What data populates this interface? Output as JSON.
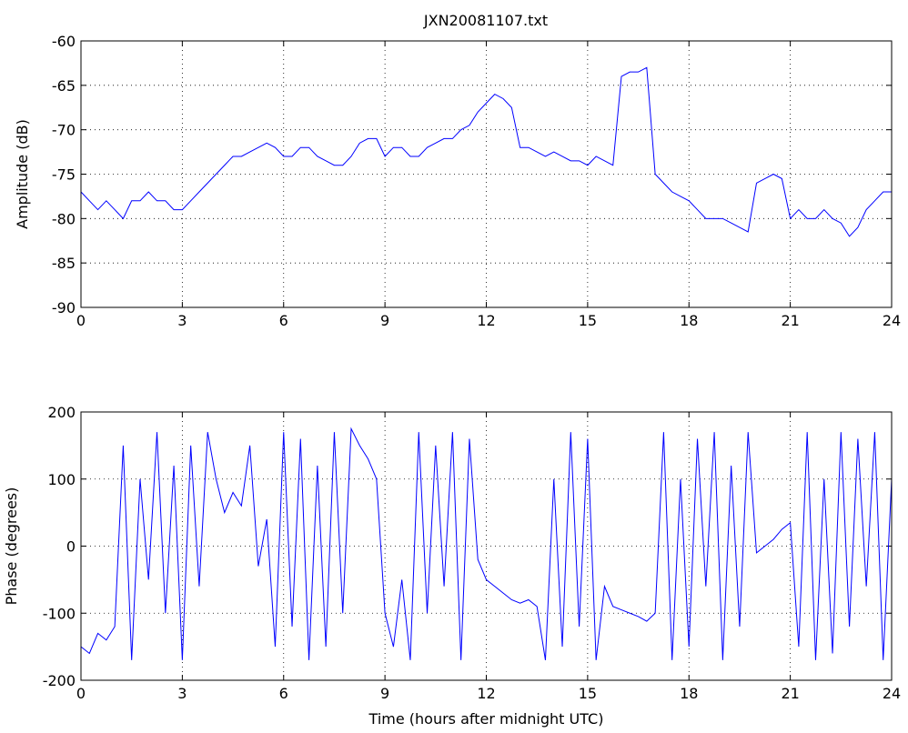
{
  "chart_data": [
    {
      "type": "line",
      "title": "JXN20081107.txt",
      "y_label": "Amplitude (dB)",
      "xlim": [
        0,
        24
      ],
      "xticks": [
        0,
        3,
        6,
        9,
        12,
        15,
        18,
        21,
        24
      ],
      "ylim": [
        -90,
        -60
      ],
      "yticks": [
        -90,
        -85,
        -80,
        -75,
        -70,
        -65,
        -60
      ],
      "grid": true,
      "x": [
        0,
        0.25,
        0.5,
        0.75,
        1,
        1.25,
        1.5,
        1.75,
        2,
        2.25,
        2.5,
        2.75,
        3,
        3.25,
        3.5,
        3.75,
        4,
        4.25,
        4.5,
        4.75,
        5,
        5.25,
        5.5,
        5.75,
        6,
        6.25,
        6.5,
        6.75,
        7,
        7.25,
        7.5,
        7.75,
        8,
        8.25,
        8.5,
        8.75,
        9,
        9.25,
        9.5,
        9.75,
        10,
        10.25,
        10.5,
        10.75,
        11,
        11.25,
        11.5,
        11.75,
        12,
        12.25,
        12.5,
        12.75,
        13,
        13.25,
        13.5,
        13.75,
        14,
        14.25,
        14.5,
        14.75,
        15,
        15.25,
        15.5,
        15.75,
        16,
        16.25,
        16.5,
        16.75,
        17,
        17.25,
        17.5,
        17.75,
        18,
        18.25,
        18.5,
        18.75,
        19,
        19.25,
        19.5,
        19.75,
        20,
        20.25,
        20.5,
        20.75,
        21,
        21.25,
        21.5,
        21.75,
        22,
        22.25,
        22.5,
        22.75,
        23,
        23.25,
        23.5,
        23.75,
        24
      ],
      "series": [
        {
          "color": "#0000ff",
          "values": [
            -77,
            -78,
            -79,
            -78,
            -79,
            -80,
            -78,
            -78,
            -77,
            -78,
            -78,
            -79,
            -79,
            -78,
            -77,
            -76,
            -75,
            -74,
            -73,
            -73,
            -72.5,
            -72,
            -71.5,
            -72,
            -73,
            -73,
            -72,
            -72,
            -73,
            -73.5,
            -74,
            -74,
            -73,
            -71.5,
            -71,
            -71,
            -73,
            -72,
            -72,
            -73,
            -73,
            -72,
            -71.5,
            -71,
            -71,
            -70,
            -69.5,
            -68,
            -67,
            -66,
            -66.5,
            -67.5,
            -72,
            -72,
            -72.5,
            -73,
            -72.5,
            -73,
            -73.5,
            -73.5,
            -74,
            -73,
            -73.5,
            -74,
            -64,
            -63.5,
            -63.5,
            -63,
            -75,
            -76,
            -77,
            -77.5,
            -78,
            -79,
            -80,
            -80,
            -80,
            -80.5,
            -81,
            -81.5,
            -76,
            -75.5,
            -75,
            -75.5,
            -80,
            -79,
            -80,
            -80,
            -79,
            -80,
            -80.5,
            -82,
            -81,
            -79,
            -78,
            -77,
            -77
          ]
        }
      ]
    },
    {
      "type": "line",
      "x_label": "Time (hours after midnight UTC)",
      "y_label": "Phase (degrees)",
      "xlim": [
        0,
        24
      ],
      "xticks": [
        0,
        3,
        6,
        9,
        12,
        15,
        18,
        21,
        24
      ],
      "ylim": [
        -200,
        200
      ],
      "yticks": [
        -200,
        -100,
        0,
        100,
        200
      ],
      "grid": true,
      "x": [
        0,
        0.25,
        0.5,
        0.75,
        1,
        1.25,
        1.5,
        1.75,
        2,
        2.25,
        2.5,
        2.75,
        3,
        3.25,
        3.5,
        3.75,
        4,
        4.25,
        4.5,
        4.75,
        5,
        5.25,
        5.5,
        5.75,
        6,
        6.25,
        6.5,
        6.75,
        7,
        7.25,
        7.5,
        7.75,
        8,
        8.25,
        8.5,
        8.75,
        9,
        9.25,
        9.5,
        9.75,
        10,
        10.25,
        10.5,
        10.75,
        11,
        11.25,
        11.5,
        11.75,
        12,
        12.25,
        12.5,
        12.75,
        13,
        13.25,
        13.5,
        13.75,
        14,
        14.25,
        14.5,
        14.75,
        15,
        15.25,
        15.5,
        15.75,
        16,
        16.25,
        16.5,
        16.75,
        17,
        17.25,
        17.5,
        17.75,
        18,
        18.25,
        18.5,
        18.75,
        19,
        19.25,
        19.5,
        19.75,
        20,
        20.25,
        20.5,
        20.75,
        21,
        21.25,
        21.5,
        21.75,
        22,
        22.25,
        22.5,
        22.75,
        23,
        23.25,
        23.5,
        23.75,
        24
      ],
      "series": [
        {
          "color": "#0000ff",
          "values": [
            -150,
            -160,
            -130,
            -140,
            -120,
            150,
            -170,
            100,
            -50,
            170,
            -100,
            120,
            -170,
            150,
            -60,
            170,
            100,
            50,
            80,
            60,
            150,
            -30,
            40,
            -150,
            170,
            -120,
            160,
            -170,
            120,
            -150,
            170,
            -100,
            175,
            150,
            130,
            100,
            -100,
            -150,
            -50,
            -170,
            170,
            -100,
            150,
            -60,
            170,
            -170,
            160,
            -20,
            -50,
            -60,
            -70,
            -80,
            -85,
            -80,
            -90,
            -170,
            100,
            -150,
            170,
            -120,
            160,
            -170,
            -60,
            -90,
            -95,
            -100,
            -105,
            -112,
            -100,
            170,
            -170,
            100,
            -150,
            160,
            -60,
            170,
            -170,
            120,
            -120,
            170,
            -10,
            0,
            10,
            25,
            35,
            -150,
            170,
            -170,
            100,
            -160,
            170,
            -120,
            160,
            -60,
            170,
            -170,
            100
          ]
        }
      ]
    }
  ]
}
